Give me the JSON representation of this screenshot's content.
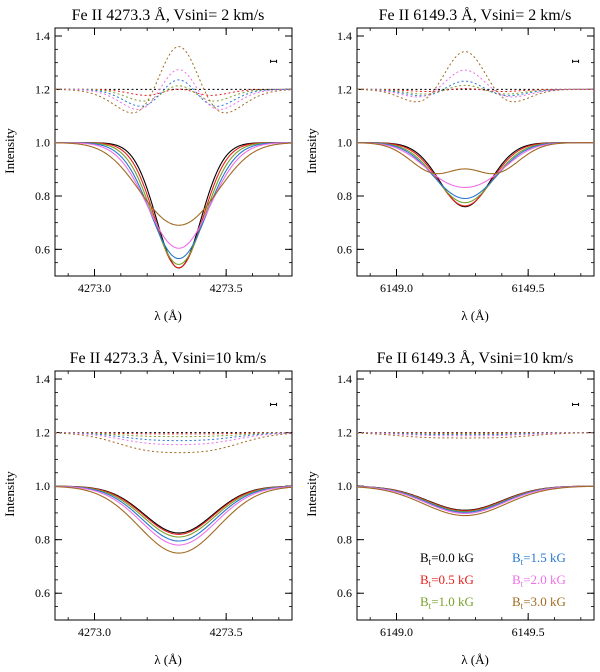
{
  "colors": {
    "0.0": "#000000",
    "0.5": "#e8201c",
    "1.0": "#78a02a",
    "1.5": "#2878d0",
    "2.0": "#ee70e8",
    "3.0": "#a06a20"
  },
  "legend": {
    "items": [
      {
        "key": "0.0",
        "prefix": "B",
        "sub": "t",
        "rest": "=0.0 kG"
      },
      {
        "key": "0.5",
        "prefix": "B",
        "sub": "t",
        "rest": "=0.5 kG"
      },
      {
        "key": "1.0",
        "prefix": "B",
        "sub": "t",
        "rest": "=1.0 kG"
      },
      {
        "key": "1.5",
        "prefix": "B",
        "sub": "t",
        "rest": "=1.5 kG"
      },
      {
        "key": "2.0",
        "prefix": "B",
        "sub": "t",
        "rest": "=2.0 kG"
      },
      {
        "key": "3.0",
        "prefix": "B",
        "sub": "t",
        "rest": "=3.0 kG"
      }
    ]
  },
  "chart_data": [
    {
      "type": "line",
      "title": "Fe II 4273.3 Å, Vsini= 2 km/s",
      "xlabel": "λ (Å)",
      "ylabel": "Intensity",
      "xlim": [
        4272.85,
        4273.75
      ],
      "ylim": [
        0.5,
        1.43
      ],
      "xticks": [
        4273.0,
        4273.5
      ],
      "xticklabels": [
        "4273.0",
        "4273.5"
      ],
      "yticks": [
        0.6,
        0.8,
        1.0,
        1.2,
        1.4
      ],
      "yticklabels": [
        "0.6",
        "0.8",
        "1.0",
        "1.2",
        "1.4"
      ],
      "center": 4273.32,
      "errorbar": {
        "x": 4273.68,
        "y": 1.305,
        "dy": 0.006
      },
      "series": [
        {
          "key": "0.0",
          "depth": 0.47,
          "width": 0.085,
          "split": 0.0,
          "diff_amp": 0.0
        },
        {
          "key": "0.5",
          "depth": 0.465,
          "width": 0.09,
          "split": 0.012,
          "diff_amp": 0.02
        },
        {
          "key": "1.0",
          "depth": 0.455,
          "width": 0.095,
          "split": 0.024,
          "diff_amp": 0.05
        },
        {
          "key": "1.5",
          "depth": 0.44,
          "width": 0.1,
          "split": 0.036,
          "diff_amp": 0.08
        },
        {
          "key": "2.0",
          "depth": 0.41,
          "width": 0.105,
          "split": 0.048,
          "diff_amp": 0.11
        },
        {
          "key": "3.0",
          "depth": 0.34,
          "width": 0.115,
          "split": 0.072,
          "diff_amp": 0.13
        }
      ]
    },
    {
      "type": "line",
      "title": "Fe II 6149.3 Å, Vsini= 2 km/s",
      "xlabel": "λ (Å)",
      "ylabel": "Intensity",
      "xlim": [
        6148.85,
        6149.75
      ],
      "ylim": [
        0.5,
        1.43
      ],
      "xticks": [
        6149.0,
        6149.5
      ],
      "xticklabels": [
        "6149.0",
        "6149.5"
      ],
      "yticks": [
        0.6,
        0.8,
        1.0,
        1.2,
        1.4
      ],
      "yticklabels": [
        "0.6",
        "0.8",
        "1.0",
        "1.2",
        "1.4"
      ],
      "center": 6149.26,
      "errorbar": {
        "x": 6149.68,
        "y": 1.305,
        "dy": 0.006
      },
      "series": [
        {
          "key": "0.0",
          "depth": 0.24,
          "width": 0.095,
          "split": 0.0,
          "diff_amp": 0.0
        },
        {
          "key": "0.5",
          "depth": 0.235,
          "width": 0.098,
          "split": 0.02,
          "diff_amp": 0.02
        },
        {
          "key": "1.0",
          "depth": 0.23,
          "width": 0.1,
          "split": 0.04,
          "diff_amp": 0.05
        },
        {
          "key": "1.5",
          "depth": 0.225,
          "width": 0.1,
          "split": 0.055,
          "diff_amp": 0.08
        },
        {
          "key": "2.0",
          "depth": 0.2,
          "width": 0.1,
          "split": 0.075,
          "diff_amp": 0.12
        },
        {
          "key": "3.0",
          "depth": 0.19,
          "width": 0.09,
          "split": 0.115,
          "diff_amp": 0.18
        }
      ]
    },
    {
      "type": "line",
      "title": "Fe II 4273.3 Å, Vsini=10 km/s",
      "xlabel": "λ (Å)",
      "ylabel": "Intensity",
      "xlim": [
        4272.85,
        4273.75
      ],
      "ylim": [
        0.5,
        1.43
      ],
      "xticks": [
        4273.0,
        4273.5
      ],
      "xticklabels": [
        "4273.0",
        "4273.5"
      ],
      "yticks": [
        0.6,
        0.8,
        1.0,
        1.2,
        1.4
      ],
      "yticklabels": [
        "0.6",
        "0.8",
        "1.0",
        "1.2",
        "1.4"
      ],
      "center": 4273.32,
      "errorbar": {
        "x": 4273.68,
        "y": 1.305,
        "dy": 0.006
      },
      "series": [
        {
          "key": "0.0",
          "depth": 0.175,
          "width": 0.13,
          "split": 0.0,
          "diff_amp": 0.0
        },
        {
          "key": "0.5",
          "depth": 0.18,
          "width": 0.132,
          "split": 0.0,
          "diff_amp": 0.01
        },
        {
          "key": "1.0",
          "depth": 0.19,
          "width": 0.135,
          "split": 0.0,
          "diff_amp": 0.025
        },
        {
          "key": "1.5",
          "depth": 0.205,
          "width": 0.138,
          "split": 0.0,
          "diff_amp": 0.04
        },
        {
          "key": "2.0",
          "depth": 0.22,
          "width": 0.142,
          "split": 0.0,
          "diff_amp": 0.06
        },
        {
          "key": "3.0",
          "depth": 0.25,
          "width": 0.15,
          "split": 0.0,
          "diff_amp": 0.09
        }
      ]
    },
    {
      "type": "line",
      "title": "Fe II 6149.3 Å, Vsini=10 km/s",
      "xlabel": "λ (Å)",
      "ylabel": "Intensity",
      "xlim": [
        6148.85,
        6149.75
      ],
      "ylim": [
        0.5,
        1.43
      ],
      "xticks": [
        6149.0,
        6149.5
      ],
      "xticklabels": [
        "6149.0",
        "6149.5"
      ],
      "yticks": [
        0.6,
        0.8,
        1.0,
        1.2,
        1.4
      ],
      "yticklabels": [
        "0.6",
        "0.8",
        "1.0",
        "1.2",
        "1.4"
      ],
      "center": 6149.26,
      "errorbar": {
        "x": 6149.68,
        "y": 1.305,
        "dy": 0.006
      },
      "series": [
        {
          "key": "0.0",
          "depth": 0.09,
          "width": 0.14,
          "split": 0.0,
          "diff_amp": 0.0
        },
        {
          "key": "0.5",
          "depth": 0.092,
          "width": 0.141,
          "split": 0.0,
          "diff_amp": 0.005
        },
        {
          "key": "1.0",
          "depth": 0.095,
          "width": 0.143,
          "split": 0.0,
          "diff_amp": 0.01
        },
        {
          "key": "1.5",
          "depth": 0.098,
          "width": 0.145,
          "split": 0.0,
          "diff_amp": 0.015
        },
        {
          "key": "2.0",
          "depth": 0.102,
          "width": 0.148,
          "split": 0.0,
          "diff_amp": 0.02
        },
        {
          "key": "3.0",
          "depth": 0.11,
          "width": 0.155,
          "split": 0.0,
          "diff_amp": 0.03
        }
      ]
    }
  ]
}
